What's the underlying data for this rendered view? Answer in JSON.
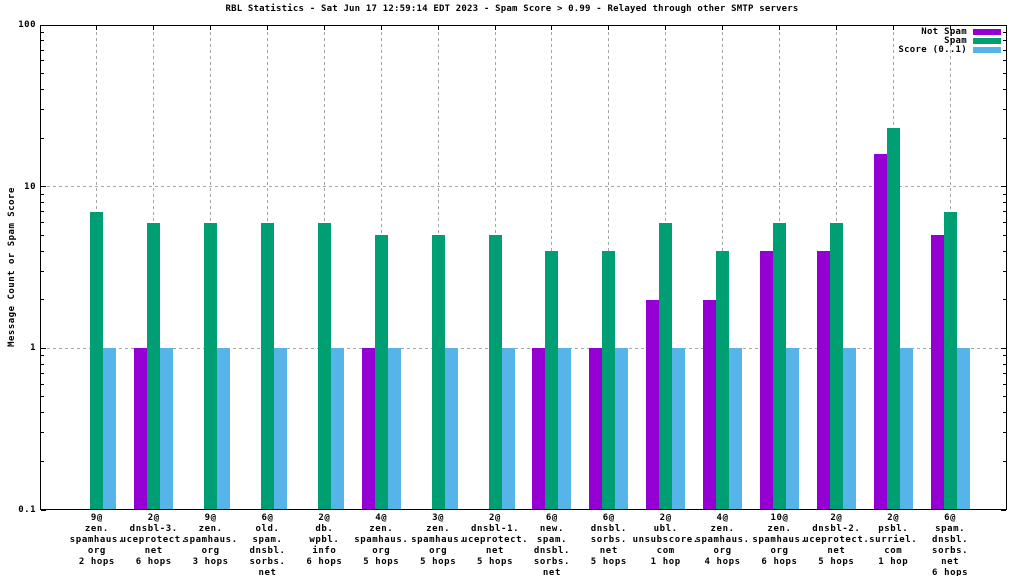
{
  "title": "RBL Statistics - Sat Jun 17 12:59:14 EDT 2023 - Spam Score > 0.99 - Relayed through other SMTP servers",
  "chart_data": {
    "type": "bar",
    "title": "RBL Statistics - Sat Jun 17 12:59:14 EDT 2023 - Spam Score > 0.99 - Relayed through other SMTP servers",
    "xlabel": "",
    "ylabel": "Message Count or Spam Score",
    "y_scale": "log",
    "ylim": [
      0.1,
      100
    ],
    "ytick_values": [
      100,
      10,
      1,
      0.1
    ],
    "ytick_labels": [
      "100",
      "10",
      "1",
      "0.1"
    ],
    "grid": true,
    "legend_position": "top-right-inside",
    "categories": [
      [
        "9@",
        "zen.",
        "spamhaus.",
        "org",
        "2 hops"
      ],
      [
        "2@",
        "dnsbl-3.",
        "uceprotect.",
        "net",
        "6 hops"
      ],
      [
        "9@",
        "zen.",
        "spamhaus.",
        "org",
        "3 hops"
      ],
      [
        "6@",
        "old.",
        "spam.",
        "dnsbl.",
        "sorbs.",
        "net",
        "6 hops"
      ],
      [
        "2@",
        "db.",
        "wpbl.",
        "info",
        "6 hops"
      ],
      [
        "4@",
        "zen.",
        "spamhaus.",
        "org",
        "5 hops"
      ],
      [
        "3@",
        "zen.",
        "spamhaus.",
        "org",
        "5 hops"
      ],
      [
        "2@",
        "dnsbl-1.",
        "uceprotect.",
        "net",
        "5 hops"
      ],
      [
        "6@",
        "new.",
        "spam.",
        "dnsbl.",
        "sorbs.",
        "net",
        "5 hops"
      ],
      [
        "6@",
        "dnsbl.",
        "sorbs.",
        "net",
        "5 hops"
      ],
      [
        "2@",
        "ubl.",
        "unsubscore.",
        "com",
        "1 hop"
      ],
      [
        "4@",
        "zen.",
        "spamhaus.",
        "org",
        "4 hops"
      ],
      [
        "10@",
        "zen.",
        "spamhaus.",
        "org",
        "6 hops"
      ],
      [
        "2@",
        "dnsbl-2.",
        "uceprotect.",
        "net",
        "5 hops"
      ],
      [
        "2@",
        "psbl.",
        "surriel.",
        "com",
        "1 hop"
      ],
      [
        "6@",
        "spam.",
        "dnsbl.",
        "sorbs.",
        "net",
        "6 hops"
      ]
    ],
    "series": [
      {
        "name": "Not Spam",
        "color": "#9400d3",
        "values": [
          0,
          1,
          0,
          0,
          0,
          1,
          0,
          0,
          1,
          1,
          2,
          2,
          4,
          4,
          16,
          5
        ]
      },
      {
        "name": "Spam",
        "color": "#009e73",
        "values": [
          7,
          6,
          6,
          6,
          6,
          5,
          5,
          5,
          4,
          4,
          6,
          4,
          6,
          6,
          23,
          7
        ]
      },
      {
        "name": "Score (0..1)",
        "color": "#56b4e9",
        "values": [
          1,
          1,
          1,
          1,
          1,
          1,
          1,
          1,
          1,
          1,
          1,
          1,
          1,
          1,
          1,
          1
        ]
      }
    ]
  }
}
